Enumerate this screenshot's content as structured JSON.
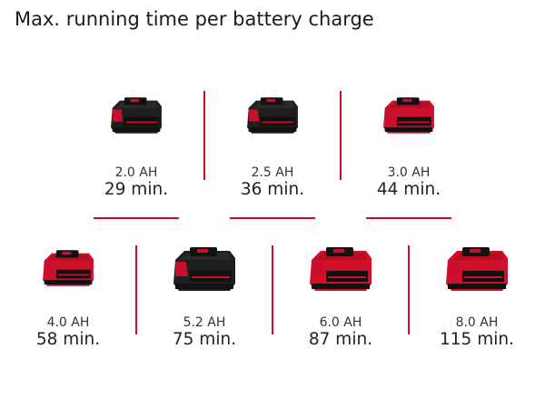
{
  "title": "Max. running time per battery charge",
  "accent_color": "#c8102e",
  "batteries": [
    {
      "capacity": "2.0 AH",
      "runtime": "29 min.",
      "style": "black"
    },
    {
      "capacity": "2.5 AH",
      "runtime": "36 min.",
      "style": "black"
    },
    {
      "capacity": "3.0 AH",
      "runtime": "44 min.",
      "style": "red"
    },
    {
      "capacity": "4.0 AH",
      "runtime": "58 min.",
      "style": "red"
    },
    {
      "capacity": "5.2 AH",
      "runtime": "75 min.",
      "style": "black"
    },
    {
      "capacity": "6.0 AH",
      "runtime": "87 min.",
      "style": "red"
    },
    {
      "capacity": "8.0 AH",
      "runtime": "115 min.",
      "style": "red"
    }
  ]
}
